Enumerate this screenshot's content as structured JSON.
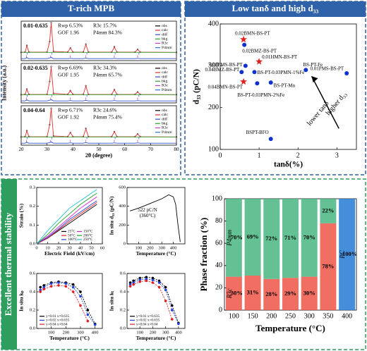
{
  "headers": {
    "top_left": "T-rich MPB",
    "top_right": "Low tanδ and high d₃₃",
    "bottom": "Excellent thermal stability"
  },
  "chart_data": [
    {
      "type": "xrd",
      "title": "0.01-0.635",
      "stats": [
        "Rwp 6.53%",
        "R3c 15.7%",
        "GOF 1.96",
        "P4mm 84.3%"
      ],
      "xlim": [
        20,
        80
      ],
      "ylim": [
        -20,
        100
      ],
      "legend": "upper right",
      "x": [
        20,
        21.5,
        22.2,
        23,
        30,
        31,
        31.6,
        32.5,
        38,
        39,
        40,
        44,
        45,
        46,
        55,
        56,
        57,
        64,
        65,
        66,
        80
      ],
      "series": [
        {
          "name": "obs",
          "color": "#000000",
          "style": "points",
          "values": [
            5,
            6,
            26,
            6,
            6,
            38,
            95,
            8,
            6,
            18,
            6,
            6,
            30,
            6,
            6,
            22,
            6,
            6,
            14,
            6,
            5
          ]
        },
        {
          "name": "calc",
          "color": "#e03030",
          "style": "line",
          "values": [
            5,
            6,
            25,
            6,
            6,
            37,
            94,
            8,
            6,
            18,
            6,
            6,
            29,
            6,
            6,
            21,
            6,
            6,
            14,
            6,
            5
          ]
        },
        {
          "name": "diff",
          "color": "#3050d0",
          "style": "line",
          "values": [
            -14,
            -14,
            -11,
            -14,
            -14,
            -12,
            -10,
            -14,
            -14,
            -13,
            -14,
            -14,
            -12,
            -14,
            -14,
            -13,
            -14,
            -14,
            -13,
            -14,
            -14
          ]
        },
        {
          "name": "bkg",
          "color": "#30a030",
          "style": "line",
          "values": [
            5,
            5,
            5,
            5,
            5,
            5,
            5,
            5,
            5,
            5,
            5,
            5,
            5,
            5,
            5,
            5,
            5,
            5,
            5,
            5,
            5
          ]
        }
      ],
      "reflections": [
        {
          "name": "R3c",
          "color": "#c040c0",
          "x": [
            22,
            31.4,
            39,
            45,
            56,
            65
          ]
        },
        {
          "name": "P4mm",
          "color": "#3070ff",
          "x": [
            22.3,
            31.8,
            45.4,
            56.3,
            65.5
          ]
        }
      ]
    },
    {
      "type": "xrd",
      "title": "0.02-0.635",
      "stats": [
        "Rwp 6.69%",
        "R3c 34.3%",
        "GOF 1.95",
        "P4mm 65.7%"
      ],
      "xlim": [
        20,
        80
      ],
      "ylim": [
        -20,
        100
      ],
      "legend": "upper right",
      "ylabel": "Intensity (a.u.)",
      "x": [
        20,
        21.5,
        22.2,
        23,
        30,
        31,
        31.6,
        32.5,
        38,
        39,
        40,
        44,
        45,
        46,
        55,
        56,
        57,
        64,
        65,
        66,
        80
      ],
      "series": [
        {
          "name": "obs",
          "color": "#000000",
          "style": "points",
          "values": [
            5,
            6,
            22,
            6,
            6,
            45,
            90,
            9,
            6,
            17,
            6,
            6,
            32,
            6,
            6,
            20,
            6,
            6,
            13,
            6,
            5
          ]
        },
        {
          "name": "calc",
          "color": "#e03030",
          "style": "line",
          "values": [
            5,
            6,
            21,
            6,
            6,
            44,
            89,
            9,
            6,
            17,
            6,
            6,
            31,
            6,
            6,
            20,
            6,
            6,
            13,
            6,
            5
          ]
        },
        {
          "name": "diff",
          "color": "#3050d0",
          "style": "line",
          "values": [
            -14,
            -14,
            -11,
            -14,
            -14,
            -12,
            -10,
            -14,
            -14,
            -13,
            -14,
            -14,
            -12,
            -14,
            -14,
            -13,
            -14,
            -14,
            -13,
            -14,
            -14
          ]
        },
        {
          "name": "bkg",
          "color": "#30a030",
          "style": "line",
          "values": [
            5,
            5,
            5,
            5,
            5,
            5,
            5,
            5,
            5,
            5,
            5,
            5,
            5,
            5,
            5,
            5,
            5,
            5,
            5,
            5,
            5
          ]
        }
      ],
      "reflections": [
        {
          "name": "R3c",
          "color": "#c040c0",
          "x": [
            22,
            31.4,
            39,
            45,
            56,
            65
          ]
        },
        {
          "name": "P4mm",
          "color": "#3070ff",
          "x": [
            22.3,
            31.8,
            45.4,
            56.3,
            65.5
          ]
        }
      ]
    },
    {
      "type": "xrd",
      "title": "0.04-0.64",
      "stats": [
        "Rwp 6.71%",
        "R3c 24.6%",
        "GOF 1.92",
        "P4mm 75.4%"
      ],
      "xlim": [
        20,
        80
      ],
      "ylim": [
        -20,
        100
      ],
      "legend": "upper right",
      "xlabel": "2θ (degree)",
      "xticks": [
        20,
        30,
        40,
        50,
        60,
        70,
        80
      ],
      "x": [
        20,
        21.5,
        22.2,
        23,
        30,
        31,
        31.6,
        32.5,
        38,
        39,
        40,
        44,
        45,
        46,
        55,
        56,
        57,
        64,
        65,
        66,
        80
      ],
      "series": [
        {
          "name": "obs",
          "color": "#000000",
          "style": "points",
          "values": [
            5,
            6,
            24,
            6,
            6,
            42,
            92,
            8,
            6,
            18,
            6,
            6,
            31,
            6,
            6,
            21,
            6,
            6,
            14,
            6,
            5
          ]
        },
        {
          "name": "calc",
          "color": "#e03030",
          "style": "line",
          "values": [
            5,
            6,
            23,
            6,
            6,
            41,
            91,
            8,
            6,
            18,
            6,
            6,
            30,
            6,
            6,
            21,
            6,
            6,
            14,
            6,
            5
          ]
        },
        {
          "name": "diff",
          "color": "#3050d0",
          "style": "line",
          "values": [
            -14,
            -14,
            -11,
            -14,
            -14,
            -12,
            -10,
            -14,
            -14,
            -13,
            -14,
            -14,
            -12,
            -14,
            -14,
            -13,
            -14,
            -14,
            -13,
            -14,
            -14
          ]
        },
        {
          "name": "bkg",
          "color": "#30a030",
          "style": "line",
          "values": [
            5,
            5,
            5,
            5,
            5,
            5,
            5,
            5,
            5,
            5,
            5,
            5,
            5,
            5,
            5,
            5,
            5,
            5,
            5,
            5,
            5
          ]
        }
      ],
      "reflections": [
        {
          "name": "R3c",
          "color": "#c040c0",
          "x": [
            22,
            31.4,
            39,
            45,
            56,
            65
          ]
        },
        {
          "name": "P4mm",
          "color": "#3070ff",
          "x": [
            22.3,
            31.8,
            45.4,
            56.3,
            65.5
          ]
        }
      ]
    },
    {
      "type": "scatter",
      "xlabel": "tanδ(%)",
      "ylabel": "d₃₃ (pC/N)",
      "xlim": [
        0,
        3.5
      ],
      "ylim": [
        100,
        400
      ],
      "xticks": [
        0,
        1,
        2,
        3
      ],
      "yticks": [
        100,
        200,
        300,
        400
      ],
      "annotations": [
        "higher d₃₃",
        "lower tanδ"
      ],
      "points": [
        {
          "label": "0.02BMN-BS-PT",
          "x": 0.6,
          "y": 363,
          "shape": "star",
          "color": "#e02020"
        },
        {
          "label": "0.02BMZ-BS-PT",
          "x": 0.62,
          "y": 350,
          "shape": "circle",
          "color": "#1030d0"
        },
        {
          "label": "0.01HMN-BS-PT",
          "x": 1.0,
          "y": 310,
          "shape": "star",
          "color": "#e02020"
        },
        {
          "label": "0.03PMS-BS-PT",
          "x": 0.65,
          "y": 300,
          "shape": "circle",
          "color": "#1030d0"
        },
        {
          "label": "0.04BMZ-BS-PT",
          "x": 0.55,
          "y": 285,
          "shape": "circle",
          "color": "#1030d0"
        },
        {
          "label": "BS-PT-0.03PMN-1%Fe",
          "x": 0.88,
          "y": 285,
          "shape": "circle",
          "color": "#1030d0"
        },
        {
          "label": "0.04BMN-BS-PT",
          "x": 0.6,
          "y": 262,
          "shape": "star",
          "color": "#e02020"
        },
        {
          "label": "BS-PT-Mn",
          "x": 1.3,
          "y": 260,
          "shape": "circle",
          "color": "#1030d0"
        },
        {
          "label": "BS-PT-0.03PMN-2%Fe",
          "x": 0.95,
          "y": 258,
          "shape": "circle",
          "color": "#1030d0"
        },
        {
          "label": "BS-PT-Fe",
          "x": 2.2,
          "y": 290,
          "shape": "circle",
          "color": "#1030d0"
        },
        {
          "label": "0.01PMS-BS-PT",
          "x": 3.25,
          "y": 282,
          "shape": "circle",
          "color": "#1030d0"
        },
        {
          "label": "BSPT-BFO",
          "x": 1.3,
          "y": 125,
          "shape": "circle",
          "color": "#1030d0"
        }
      ]
    },
    {
      "type": "line",
      "xlabel": "Electric Field (kV/cm)",
      "ylabel": "Strain (%)",
      "xlim": [
        0,
        60
      ],
      "ylim": [
        0,
        0.3
      ],
      "xticks": [
        0,
        10,
        20,
        30,
        40,
        50,
        60
      ],
      "yticks": [
        {
          "value": 0,
          "label": "0.0"
        },
        0.1,
        0.2,
        0.3
      ],
      "legend": "lower right",
      "x": [
        0,
        10,
        20,
        30,
        40,
        50,
        55
      ],
      "series": [
        {
          "name": "25°C",
          "color": "#000000",
          "style": "line",
          "values": [
            0,
            0.03,
            0.07,
            0.11,
            0.15,
            0.19,
            0.21
          ]
        },
        {
          "name": "50°C",
          "color": "#e02020",
          "style": "line",
          "values": [
            0,
            0.03,
            0.075,
            0.12,
            0.16,
            0.2,
            0.22
          ]
        },
        {
          "name": "100°C",
          "color": "#2040e0",
          "style": "line",
          "values": [
            0,
            0.035,
            0.08,
            0.13,
            0.17,
            0.21,
            0.23
          ]
        },
        {
          "name": "150°C",
          "color": "#d020d0",
          "style": "line",
          "values": [
            0,
            0.04,
            0.09,
            0.14,
            0.19,
            0.23,
            0.25
          ]
        },
        {
          "name": "200°C",
          "color": "#20a020",
          "style": "line",
          "values": [
            0,
            0.05,
            0.11,
            0.16,
            0.21,
            0.25,
            0.27
          ]
        },
        {
          "name": "250°C",
          "color": "#20c0d0",
          "style": "line",
          "values": [
            0,
            0.07,
            0.13,
            0.19,
            0.23,
            0.27,
            0.29
          ]
        }
      ]
    },
    {
      "type": "line",
      "xlabel": "Temperature (°C)",
      "ylabel": "In situ d₃₃ (pC/N)",
      "xlim": [
        0,
        500
      ],
      "ylim": [
        0,
        600
      ],
      "xticks": [
        100,
        200,
        300,
        400
      ],
      "yticks": [
        0,
        200,
        400,
        600
      ],
      "annotations": [
        "522 pC/N",
        "(360°C)"
      ],
      "x": [
        25,
        100,
        200,
        300,
        360,
        400,
        420,
        440,
        460
      ],
      "series": [
        {
          "name": "d33",
          "color": "#000000",
          "style": "line",
          "values": [
            350,
            380,
            430,
            480,
            522,
            500,
            420,
            200,
            20
          ]
        }
      ]
    },
    {
      "type": "line",
      "xlabel": "Temperature (°C)",
      "ylabel": "In situ kₚ",
      "xlim": [
        0,
        450
      ],
      "ylim": [
        0,
        0.6
      ],
      "xticks": [
        100,
        200,
        300,
        400
      ],
      "yticks": [
        {
          "value": 0,
          "label": "0.0"
        },
        0.2,
        0.4,
        0.6
      ],
      "legend": "lower left",
      "x": [
        25,
        50,
        100,
        150,
        200,
        250,
        300,
        350,
        400
      ],
      "series": [
        {
          "name": "y=0.01 x=0.635",
          "color": "#000000",
          "style": "dotted-points",
          "values": [
            0.45,
            0.47,
            0.5,
            0.51,
            0.5,
            0.48,
            0.4,
            0.2,
            0.05
          ]
        },
        {
          "name": "y=0.02 x=0.635",
          "color": "#2040e0",
          "style": "dotted-points",
          "values": [
            0.42,
            0.45,
            0.49,
            0.5,
            0.49,
            0.45,
            0.35,
            0.15,
            0.04
          ]
        },
        {
          "name": "y=0.04 x=0.64",
          "color": "#e02020",
          "style": "dotted-points",
          "values": [
            0.4,
            0.43,
            0.46,
            0.47,
            0.46,
            0.4,
            0.25,
            0.08,
            null
          ]
        }
      ]
    },
    {
      "type": "line",
      "xlabel": "Temperature (°C)",
      "ylabel": "In situ kₜ",
      "xlim": [
        0,
        450
      ],
      "ylim": [
        0,
        0.6
      ],
      "xticks": [
        100,
        200,
        300,
        400
      ],
      "yticks": [
        {
          "value": 0,
          "label": "0.0"
        },
        0.2,
        0.4,
        0.6
      ],
      "legend": "lower left",
      "x": [
        25,
        50,
        100,
        150,
        200,
        250,
        300,
        350,
        400
      ],
      "series": [
        {
          "name": "y=0.01 x=0.635",
          "color": "#000000",
          "style": "dotted-points",
          "values": [
            0.5,
            0.52,
            0.55,
            0.56,
            0.55,
            0.52,
            0.45,
            0.25,
            0.06
          ]
        },
        {
          "name": "y=0.02 x=0.635",
          "color": "#2040e0",
          "style": "dotted-points",
          "values": [
            0.48,
            0.5,
            0.53,
            0.54,
            0.53,
            0.5,
            0.42,
            0.2,
            0.05
          ]
        },
        {
          "name": "y=0.04 x=0.64",
          "color": "#e02020",
          "style": "dotted-points",
          "values": [
            0.46,
            0.48,
            0.51,
            0.52,
            0.5,
            0.45,
            0.3,
            0.1,
            null
          ]
        }
      ]
    },
    {
      "type": "stacked-bar",
      "xlabel": "Temperature (°C)",
      "ylabel": "Phase fraction (%)",
      "ylim": [
        0,
        100
      ],
      "yticks": [
        0,
        20,
        40,
        60,
        80,
        100
      ],
      "categories": [
        "100",
        "150",
        "200",
        "250",
        "300",
        "350",
        "400"
      ],
      "series": [
        {
          "name": "R3c",
          "color": "#ef5a4c",
          "values": [
            30,
            31,
            28,
            29,
            30,
            78,
            null
          ],
          "value_labels": [
            "30%",
            "31%",
            "28%",
            "29%",
            "30%",
            "78%",
            null
          ]
        },
        {
          "name": "P4mm",
          "color": "#4fb884",
          "values": [
            70,
            69,
            72,
            71,
            70,
            22,
            null
          ],
          "value_labels": [
            "70%",
            "69%",
            "72%",
            "71%",
            "70%",
            "22%",
            null
          ]
        },
        {
          "name": "PC",
          "color": "#2a7ed6",
          "values": [
            null,
            null,
            null,
            null,
            null,
            null,
            100
          ],
          "value_labels": [
            null,
            null,
            null,
            null,
            null,
            null,
            "100%"
          ]
        }
      ]
    }
  ]
}
